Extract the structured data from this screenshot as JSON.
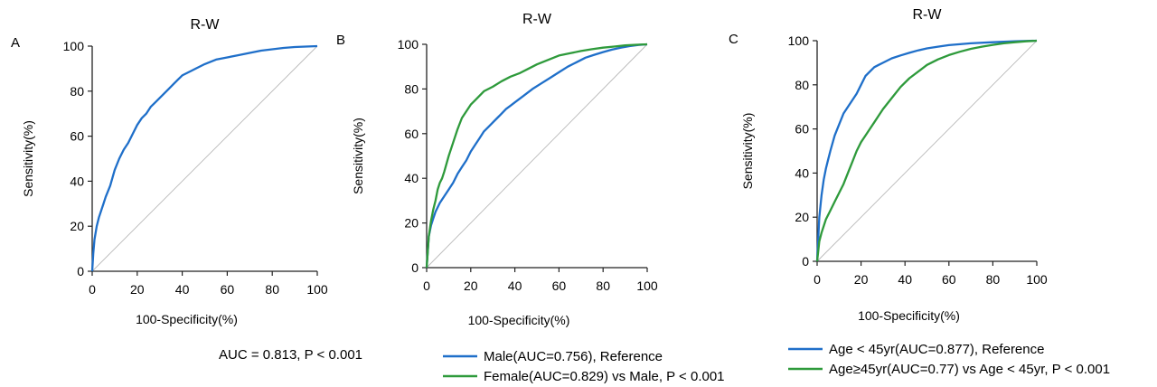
{
  "chart_data": [
    {
      "panel_label": "A",
      "type": "line",
      "title": "R-W",
      "xlabel": "100-Specificity(%)",
      "ylabel": "Sensitivity(%)",
      "xlim": [
        0,
        100
      ],
      "ylim": [
        0,
        100
      ],
      "x_ticks": [
        "0",
        "20",
        "40",
        "60",
        "80",
        "100"
      ],
      "y_ticks": [
        "0",
        "20",
        "40",
        "60",
        "80",
        "100"
      ],
      "reference_line": true,
      "annotation": "AUC = 0.813, P < 0.001",
      "series": [
        {
          "color": "#1f6fc9",
          "x": [
            0,
            0.5,
            1,
            2,
            3,
            4,
            5,
            6,
            8,
            10,
            12,
            14,
            16,
            18,
            20,
            22,
            24,
            26,
            28,
            30,
            32,
            34,
            36,
            38,
            40,
            42,
            44,
            46,
            48,
            50,
            55,
            60,
            65,
            70,
            75,
            80,
            85,
            90,
            95,
            100
          ],
          "y": [
            0,
            8,
            14,
            20,
            24,
            27,
            30,
            33,
            38,
            45,
            50,
            54,
            57,
            61,
            65,
            68,
            70,
            73,
            75,
            77,
            79,
            81,
            83,
            85,
            87,
            88,
            89,
            90,
            91,
            92,
            94,
            95,
            96,
            97,
            98,
            98.6,
            99.2,
            99.6,
            99.8,
            100
          ]
        }
      ]
    },
    {
      "panel_label": "B",
      "type": "line",
      "title": "R-W",
      "xlabel": "100-Specificity(%)",
      "ylabel": "Sensitivity(%)",
      "xlim": [
        0,
        100
      ],
      "ylim": [
        0,
        100
      ],
      "x_ticks": [
        "0",
        "20",
        "40",
        "60",
        "80",
        "100"
      ],
      "y_ticks": [
        "0",
        "20",
        "40",
        "60",
        "80",
        "100"
      ],
      "reference_line": true,
      "legend_position": "bottom",
      "series": [
        {
          "name": "Male(AUC=0.756), Reference",
          "color": "#1f6fc9",
          "x": [
            0,
            1,
            2,
            3,
            4,
            6,
            8,
            10,
            12,
            14,
            16,
            18,
            20,
            22,
            24,
            26,
            28,
            30,
            32,
            34,
            36,
            38,
            40,
            44,
            48,
            52,
            56,
            60,
            64,
            68,
            72,
            76,
            80,
            84,
            88,
            92,
            96,
            100
          ],
          "y": [
            0,
            14,
            19,
            22,
            25,
            29,
            32,
            35,
            38,
            42,
            45,
            48,
            52,
            55,
            58,
            61,
            63,
            65,
            67,
            69,
            71,
            72.5,
            74,
            77,
            80,
            82.5,
            85,
            87.5,
            90,
            92,
            94,
            95.3,
            96.5,
            97.6,
            98.5,
            99.2,
            99.7,
            100
          ]
        },
        {
          "name": "Female(AUC=0.829) vs Male, P < 0.001",
          "color": "#2e9a3b",
          "x": [
            0,
            1,
            2,
            3,
            4,
            5,
            6,
            7,
            8,
            10,
            12,
            14,
            16,
            18,
            20,
            22,
            24,
            26,
            28,
            30,
            34,
            38,
            42,
            46,
            50,
            55,
            60,
            65,
            70,
            75,
            80,
            85,
            90,
            95,
            100
          ],
          "y": [
            0,
            14,
            21,
            26,
            30,
            35,
            38,
            40,
            43,
            50,
            56,
            62,
            67,
            70,
            73,
            75,
            77,
            79,
            80,
            81,
            83.5,
            85.5,
            87,
            89,
            91,
            93,
            95,
            96,
            97,
            97.8,
            98.5,
            99,
            99.5,
            99.8,
            100
          ]
        }
      ]
    },
    {
      "panel_label": "C",
      "type": "line",
      "title": "R-W",
      "xlabel": "100-Specificity(%)",
      "ylabel": "Sensitivity(%)",
      "xlim": [
        0,
        100
      ],
      "ylim": [
        0,
        100
      ],
      "x_ticks": [
        "0",
        "20",
        "40",
        "60",
        "80",
        "100"
      ],
      "y_ticks": [
        "0",
        "20",
        "40",
        "60",
        "80",
        "100"
      ],
      "reference_line": true,
      "legend_position": "bottom",
      "series": [
        {
          "name": "Age < 45yr(AUC=0.877), Reference",
          "color": "#1f6fc9",
          "x": [
            0,
            0.5,
            1,
            2,
            3,
            4,
            5,
            6,
            8,
            10,
            12,
            14,
            16,
            18,
            20,
            22,
            24,
            26,
            28,
            30,
            34,
            38,
            42,
            46,
            50,
            55,
            60,
            70,
            80,
            90,
            100
          ],
          "y": [
            0,
            10,
            20,
            30,
            37,
            42,
            46,
            50,
            57,
            62,
            67,
            70,
            73,
            76,
            80,
            84,
            86,
            88,
            89,
            90,
            92,
            93.3,
            94.5,
            95.6,
            96.5,
            97.3,
            98,
            98.8,
            99.3,
            99.7,
            100
          ]
        },
        {
          "name": "Age≥45yr(AUC=0.77) vs Age < 45yr, P < 0.001",
          "color": "#2e9a3b",
          "x": [
            0,
            1,
            2,
            3,
            4,
            6,
            8,
            10,
            12,
            14,
            16,
            18,
            20,
            22,
            24,
            26,
            28,
            30,
            34,
            38,
            42,
            46,
            50,
            55,
            60,
            65,
            70,
            75,
            80,
            85,
            90,
            95,
            100
          ],
          "y": [
            0,
            9,
            13,
            16,
            19,
            23,
            27,
            31,
            35,
            40,
            45,
            50,
            54,
            57,
            60,
            63,
            66,
            69,
            74,
            79,
            83,
            86,
            89,
            91.5,
            93.5,
            95,
            96.3,
            97.3,
            98.1,
            98.8,
            99.3,
            99.7,
            100
          ]
        }
      ]
    }
  ]
}
